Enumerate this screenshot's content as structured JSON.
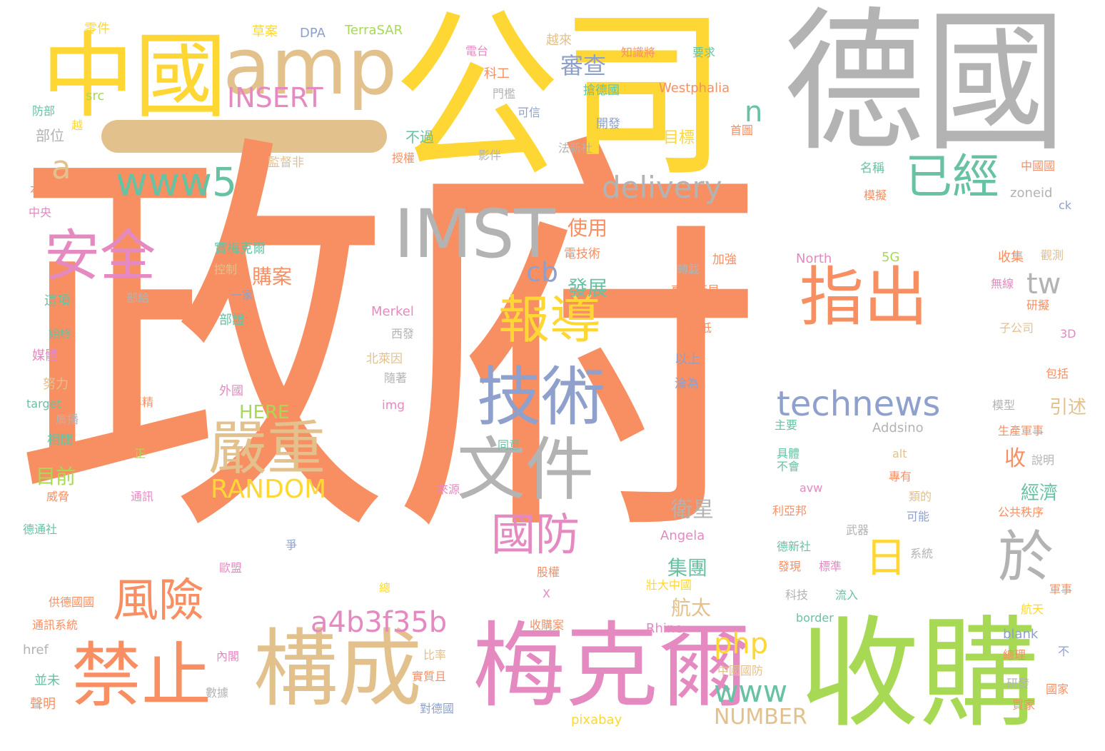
{
  "colors": {
    "orange": "#f78f63",
    "yellow": "#fed734",
    "tan": "#e3c18d",
    "gray": "#b3b3b3",
    "green": "#a7d954",
    "teal": "#67c2a3",
    "blue": "#8ea0cb",
    "pink": "#e48ac1"
  },
  "words": [
    {
      "id": "zhengfu",
      "text": "政府",
      "color": "orange"
    },
    {
      "id": "gongsi",
      "text": "公司",
      "color": "yellow"
    },
    {
      "id": "deguo",
      "text": "德國",
      "color": "gray"
    },
    {
      "id": "zhongguo",
      "text": "中國",
      "color": "yellow"
    },
    {
      "id": "amp",
      "text": "amp",
      "color": "tan"
    },
    {
      "id": "shougou",
      "text": "收購",
      "color": "green"
    },
    {
      "id": "meikeer",
      "text": "梅克爾",
      "color": "pink"
    },
    {
      "id": "goucheng",
      "text": "構成",
      "color": "tan"
    },
    {
      "id": "jinzhi",
      "text": "禁止",
      "color": "orange"
    },
    {
      "id": "imst",
      "text": "IMST",
      "color": "gray"
    },
    {
      "id": "jishu",
      "text": "技術",
      "color": "blue"
    },
    {
      "id": "wenjian",
      "text": "文件",
      "color": "gray"
    },
    {
      "id": "zhichu",
      "text": "指出",
      "color": "orange"
    },
    {
      "id": "anquan",
      "text": "安全",
      "color": "pink"
    },
    {
      "id": "yanzhong",
      "text": "嚴重",
      "color": "tan"
    },
    {
      "id": "www5",
      "text": "www5",
      "color": "teal"
    },
    {
      "id": "fengxian",
      "text": "風險",
      "color": "orange"
    },
    {
      "id": "baodao",
      "text": "報導",
      "color": "yellow"
    },
    {
      "id": "yijing",
      "text": "已經",
      "color": "teal"
    },
    {
      "id": "guofang",
      "text": "國防",
      "color": "pink"
    },
    {
      "id": "technews",
      "text": "technews",
      "color": "blue"
    },
    {
      "id": "delivery",
      "text": "delivery",
      "color": "gray"
    },
    {
      "id": "a4b3f35b",
      "text": "a4b3f35b",
      "color": "pink"
    },
    {
      "id": "yu",
      "text": "於",
      "color": "gray"
    },
    {
      "id": "ri",
      "text": "日",
      "color": "yellow"
    },
    {
      "id": "insert",
      "text": "INSERT",
      "color": "pink"
    },
    {
      "id": "random",
      "text": "RANDOM",
      "color": "yellow"
    },
    {
      "id": "www",
      "text": "www",
      "color": "teal"
    },
    {
      "id": "php",
      "text": "php",
      "color": "yellow"
    },
    {
      "id": "tw",
      "text": "tw",
      "color": "gray"
    },
    {
      "id": "number",
      "text": "NUMBER",
      "color": "tan"
    },
    {
      "id": "a",
      "text": "a",
      "color": "tan"
    },
    {
      "id": "n",
      "text": "n",
      "color": "teal"
    },
    {
      "id": "cb",
      "text": "cb",
      "color": "blue"
    },
    {
      "id": "shencha",
      "text": "審查",
      "color": "blue"
    },
    {
      "id": "shiyong",
      "text": "使用",
      "color": "orange"
    },
    {
      "id": "fazhan",
      "text": "發展",
      "color": "teal"
    },
    {
      "id": "gouan",
      "text": "購案",
      "color": "orange"
    },
    {
      "id": "weixing",
      "text": "衛星",
      "color": "gray"
    },
    {
      "id": "jituan",
      "text": "集團",
      "color": "teal"
    },
    {
      "id": "hangtai",
      "text": "航太",
      "color": "tan"
    },
    {
      "id": "jingji",
      "text": "經濟",
      "color": "teal"
    },
    {
      "id": "yinshu",
      "text": "引述",
      "color": "tan"
    },
    {
      "id": "shou",
      "text": "收",
      "color": "orange"
    },
    {
      "id": "muqian",
      "text": "目前",
      "color": "green"
    },
    {
      "id": "mubiao",
      "text": "目標",
      "color": "yellow"
    },
    {
      "id": "here",
      "text": "HERE",
      "color": "green"
    },
    {
      "id": "lingjian",
      "text": "零件",
      "color": "yellow"
    },
    {
      "id": "caoan",
      "text": "草案",
      "color": "yellow"
    },
    {
      "id": "dpa",
      "text": "DPA",
      "color": "blue"
    },
    {
      "id": "terrasar",
      "text": "TerraSAR",
      "color": "green"
    },
    {
      "id": "yuelai",
      "text": "越來",
      "color": "tan"
    },
    {
      "id": "diantai",
      "text": "電台",
      "color": "pink"
    },
    {
      "id": "zhishijiang",
      "text": "知識將",
      "color": "orange"
    },
    {
      "id": "yaoqiu",
      "text": "要求",
      "color": "teal"
    },
    {
      "id": "kegong",
      "text": "科工",
      "color": "orange"
    },
    {
      "id": "menkan",
      "text": "門檻",
      "color": "gray"
    },
    {
      "id": "kexin",
      "text": "可信",
      "color": "blue"
    },
    {
      "id": "qiangdeguo",
      "text": "搶德國",
      "color": "teal"
    },
    {
      "id": "westphalia",
      "text": "Westphalia",
      "color": "orange"
    },
    {
      "id": "src",
      "text": "src",
      "color": "green"
    },
    {
      "id": "fangbu",
      "text": "防部",
      "color": "teal"
    },
    {
      "id": "yue",
      "text": "越",
      "color": "yellow"
    },
    {
      "id": "buwei",
      "text": "部位",
      "color": "gray"
    },
    {
      "id": "buguo",
      "text": "不過",
      "color": "teal"
    },
    {
      "id": "kaifa",
      "text": "開發",
      "color": "blue"
    },
    {
      "id": "shouye",
      "text": "首圖",
      "color": "orange"
    },
    {
      "id": "shouquan",
      "text": "授權",
      "color": "orange"
    },
    {
      "id": "yingban",
      "text": "影伴",
      "color": "gray"
    },
    {
      "id": "faxinshe",
      "text": "法新社",
      "color": "gray"
    },
    {
      "id": "falv",
      "text": "法律",
      "color": "orange"
    },
    {
      "id": "jianduofei",
      "text": "監督非",
      "color": "tan"
    },
    {
      "id": "mingcheng",
      "text": "名稱",
      "color": "teal"
    },
    {
      "id": "zhongguoguo",
      "text": "中國國",
      "color": "orange"
    },
    {
      "id": "benwen",
      "text": "本文",
      "color": "orange"
    },
    {
      "id": "moni",
      "text": "模擬",
      "color": "orange"
    },
    {
      "id": "zoneid",
      "text": "zoneid",
      "color": "gray"
    },
    {
      "id": "zhongyang",
      "text": "中央",
      "color": "pink"
    },
    {
      "id": "ck",
      "text": "ck",
      "color": "blue"
    },
    {
      "id": "shimeikeer",
      "text": "實梅克爾",
      "color": "teal"
    },
    {
      "id": "dianjishu",
      "text": "電技術",
      "color": "orange"
    },
    {
      "id": "north",
      "text": "North",
      "color": "pink"
    },
    {
      "id": "5g",
      "text": "5G",
      "color": "green"
    },
    {
      "id": "shouji",
      "text": "收集",
      "color": "orange"
    },
    {
      "id": "guance",
      "text": "觀測",
      "color": "tan"
    },
    {
      "id": "kongzhi",
      "text": "控制",
      "color": "tan"
    },
    {
      "id": "zhuanzai",
      "text": "轉載",
      "color": "gray"
    },
    {
      "id": "jiaqiang",
      "text": "加強",
      "color": "orange"
    },
    {
      "id": "wuxian",
      "text": "無線",
      "color": "pink"
    },
    {
      "id": "yijia",
      "text": "一家",
      "color": "blue"
    },
    {
      "id": "zheixiang",
      "text": "這項",
      "color": "teal"
    },
    {
      "id": "bugei",
      "text": "部給",
      "color": "gray"
    },
    {
      "id": "zhuanjingweixing",
      "text": "專精衛星",
      "color": "orange"
    },
    {
      "id": "yijiangou",
      "text": "以建構",
      "color": "orange"
    },
    {
      "id": "yanni",
      "text": "研擬",
      "color": "orange"
    },
    {
      "id": "merkel",
      "text": "Merkel",
      "color": "pink"
    },
    {
      "id": "buzheng",
      "text": "部證",
      "color": "teal"
    },
    {
      "id": "jiangdi",
      "text": "降低",
      "color": "orange"
    },
    {
      "id": "zigongsi",
      "text": "子公司",
      "color": "tan"
    },
    {
      "id": "3d",
      "text": "3D",
      "color": "pink"
    },
    {
      "id": "shizhong",
      "text": "始終",
      "color": "teal"
    },
    {
      "id": "xifa",
      "text": "西發",
      "color": "gray"
    },
    {
      "id": "meiti",
      "text": "媒體",
      "color": "pink"
    },
    {
      "id": "beilaiyin",
      "text": "北萊因",
      "color": "tan"
    },
    {
      "id": "yishang",
      "text": "以上",
      "color": "blue"
    },
    {
      "id": "baokuo",
      "text": "包括",
      "color": "orange"
    },
    {
      "id": "nuli",
      "text": "努力",
      "color": "tan"
    },
    {
      "id": "suizhe",
      "text": "隨著",
      "color": "gray"
    },
    {
      "id": "lunwei",
      "text": "淪為",
      "color": "blue"
    },
    {
      "id": "target",
      "text": "target",
      "color": "teal"
    },
    {
      "id": "zhuanjing",
      "text": "專精",
      "color": "orange"
    },
    {
      "id": "img",
      "text": "img",
      "color": "pink"
    },
    {
      "id": "waiguo",
      "text": "外國",
      "color": "pink"
    },
    {
      "id": "moxing",
      "text": "模型",
      "color": "gray"
    },
    {
      "id": "guangbo",
      "text": "廣播",
      "color": "gray"
    },
    {
      "id": "addsino",
      "text": "Addsino",
      "color": "gray"
    },
    {
      "id": "zhuyao",
      "text": "主要",
      "color": "teal"
    },
    {
      "id": "shengchanjunshi",
      "text": "生產軍事",
      "color": "orange"
    },
    {
      "id": "xiangguan",
      "text": "相關",
      "color": "teal"
    },
    {
      "id": "tongyi",
      "text": "同意",
      "color": "teal"
    },
    {
      "id": "zheng",
      "text": "正",
      "color": "green"
    },
    {
      "id": "alt",
      "text": "alt",
      "color": "tan"
    },
    {
      "id": "juti",
      "text": "具體",
      "color": "teal"
    },
    {
      "id": "shuoming",
      "text": "說明",
      "color": "gray"
    },
    {
      "id": "buhui",
      "text": "不會",
      "color": "teal"
    },
    {
      "id": "zhuanyou",
      "text": "專有",
      "color": "orange"
    },
    {
      "id": "weixie",
      "text": "威脅",
      "color": "orange"
    },
    {
      "id": "tongxun",
      "text": "通訊",
      "color": "pink"
    },
    {
      "id": "laiyuan",
      "text": "來源",
      "color": "pink"
    },
    {
      "id": "avw",
      "text": "avw",
      "color": "pink"
    },
    {
      "id": "leide",
      "text": "類的",
      "color": "tan"
    },
    {
      "id": "liyabang",
      "text": "利亞邦",
      "color": "orange"
    },
    {
      "id": "keneng",
      "text": "可能",
      "color": "blue"
    },
    {
      "id": "gonggongzhixu",
      "text": "公共秩序",
      "color": "orange"
    },
    {
      "id": "angela",
      "text": "Angela",
      "color": "pink"
    },
    {
      "id": "wuqi",
      "text": "武器",
      "color": "gray"
    },
    {
      "id": "detongshe",
      "text": "德通社",
      "color": "teal"
    },
    {
      "id": "zheng2",
      "text": "爭",
      "color": "blue"
    },
    {
      "id": "dexinshe",
      "text": "德新社",
      "color": "teal"
    },
    {
      "id": "xitong",
      "text": "系統",
      "color": "gray"
    },
    {
      "id": "oumeng",
      "text": "歐盟",
      "color": "pink"
    },
    {
      "id": "guquan",
      "text": "股權",
      "color": "orange"
    },
    {
      "id": "faxian",
      "text": "發現",
      "color": "orange"
    },
    {
      "id": "biaozhun",
      "text": "標準",
      "color": "pink"
    },
    {
      "id": "zong",
      "text": "總",
      "color": "yellow"
    },
    {
      "id": "x",
      "text": "X",
      "color": "pink"
    },
    {
      "id": "zhuangdazhongguo",
      "text": "壯大中國",
      "color": "yellow"
    },
    {
      "id": "junshi",
      "text": "軍事",
      "color": "orange"
    },
    {
      "id": "gongdeguoguo",
      "text": "供德國國",
      "color": "orange"
    },
    {
      "id": "keji",
      "text": "科技",
      "color": "gray"
    },
    {
      "id": "liuru",
      "text": "流入",
      "color": "teal"
    },
    {
      "id": "hangtian",
      "text": "航天",
      "color": "yellow"
    },
    {
      "id": "border",
      "text": "border",
      "color": "teal"
    },
    {
      "id": "tongxunxitong",
      "text": "通訊系統",
      "color": "orange"
    },
    {
      "id": "shougouan",
      "text": "收購案",
      "color": "orange"
    },
    {
      "id": "rhine",
      "text": "Rhine",
      "color": "pink"
    },
    {
      "id": "blank",
      "text": "blank",
      "color": "blue"
    },
    {
      "id": "href",
      "text": "href",
      "color": "gray"
    },
    {
      "id": "bilv",
      "text": "比率",
      "color": "tan"
    },
    {
      "id": "neige",
      "text": "內閣",
      "color": "pink"
    },
    {
      "id": "zongli",
      "text": "總理",
      "color": "orange"
    },
    {
      "id": "bu",
      "text": "不",
      "color": "blue"
    },
    {
      "id": "shizhiqie",
      "text": "實質且",
      "color": "orange"
    },
    {
      "id": "bingwei",
      "text": "並未",
      "color": "teal"
    },
    {
      "id": "zhongguoguofang",
      "text": "中國國防",
      "color": "tan"
    },
    {
      "id": "yanfa",
      "text": "研發",
      "color": "gray"
    },
    {
      "id": "guojia",
      "text": "國家",
      "color": "orange"
    },
    {
      "id": "shuju",
      "text": "數據",
      "color": "gray"
    },
    {
      "id": "shengming",
      "text": "聲明",
      "color": "orange"
    },
    {
      "id": "duideguo",
      "text": "對德國",
      "color": "blue"
    },
    {
      "id": "mai",
      "text": "買家",
      "color": "orange"
    },
    {
      "id": "pixabay",
      "text": "pixabay",
      "color": "yellow"
    }
  ]
}
